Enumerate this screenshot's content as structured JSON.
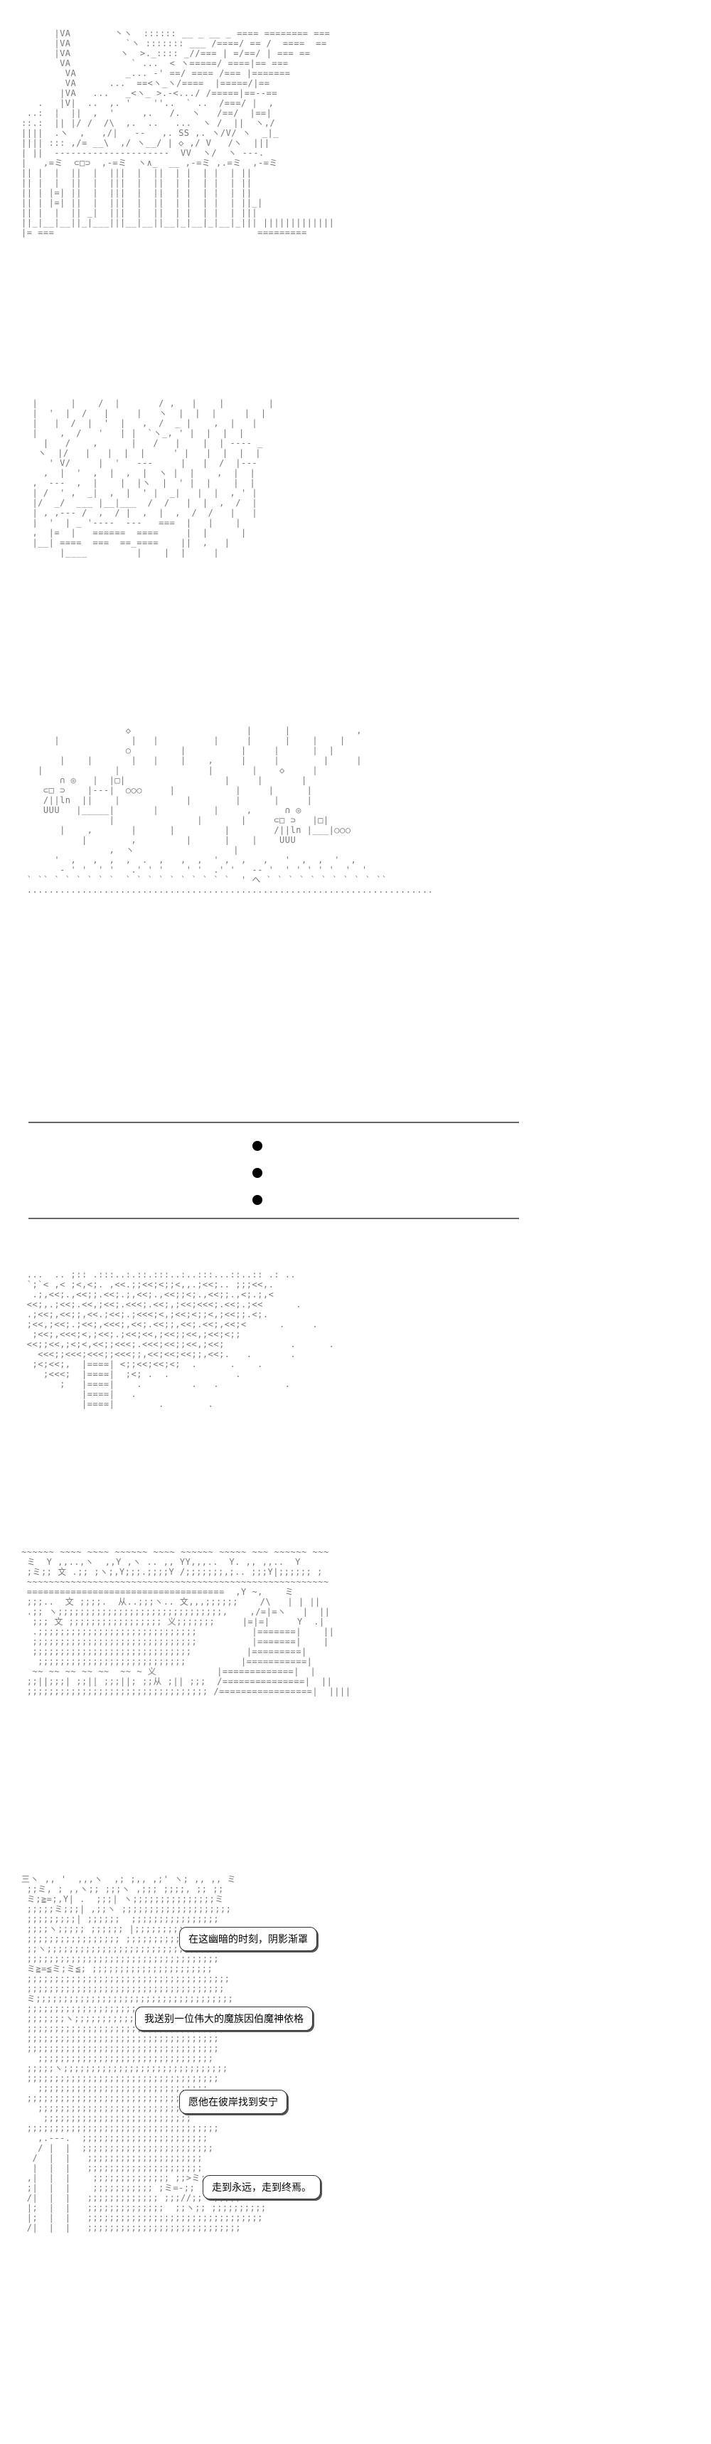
{
  "dialogue": [
    "在这幽暗的时刻，阴影渐罩",
    "我送别一位伟大的魔族因伯魔神依格",
    "愿他在彼岸找到安宁",
    "走到永远，走到终焉。"
  ]
}
